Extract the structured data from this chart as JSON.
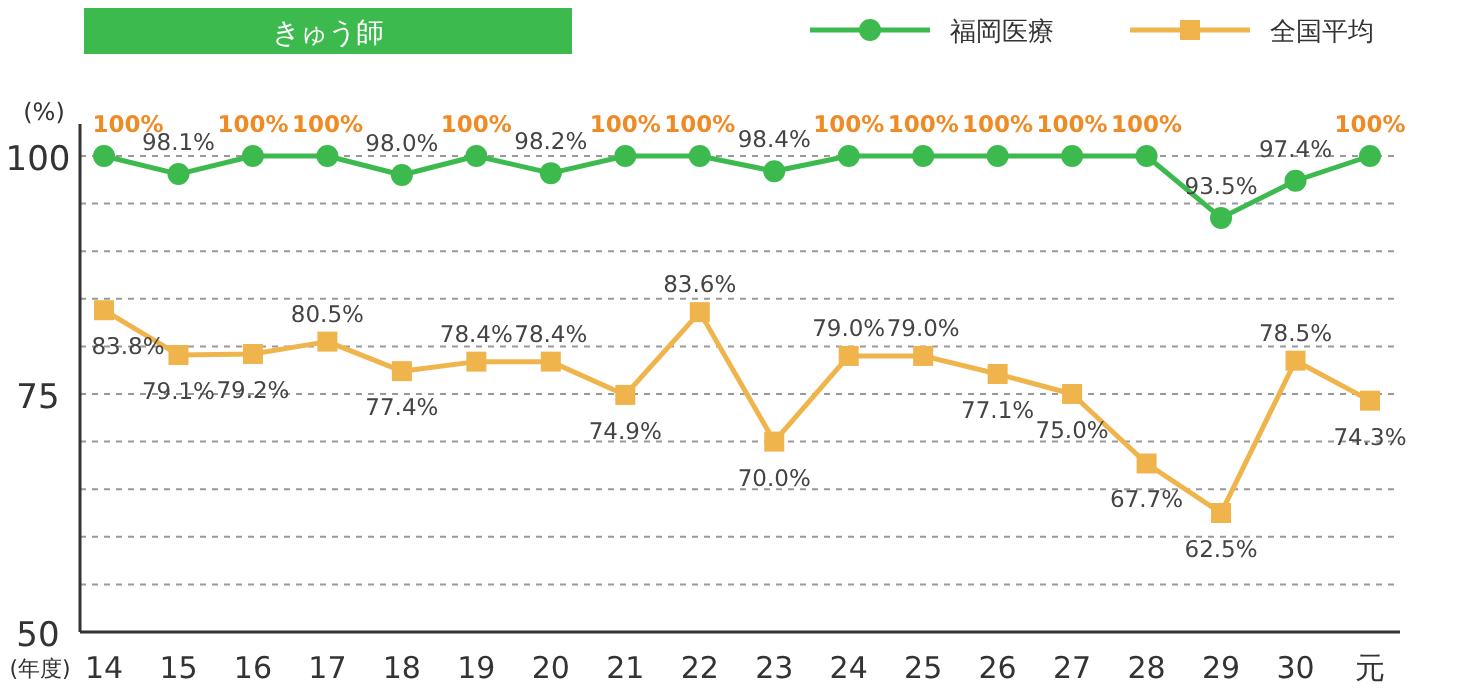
{
  "chart_data": {
    "type": "line",
    "title": "きゅう師",
    "xlabel": "(年度)",
    "ylabel": "(%)",
    "categories": [
      "14",
      "15",
      "16",
      "17",
      "18",
      "19",
      "20",
      "21",
      "22",
      "23",
      "24",
      "25",
      "26",
      "27",
      "28",
      "29",
      "30",
      "元"
    ],
    "series": [
      {
        "name": "福岡医療",
        "color": "#3dba4e",
        "marker": "circle",
        "values": [
          100,
          98.1,
          100,
          100,
          98.0,
          100,
          98.2,
          100,
          100,
          98.4,
          100,
          100,
          100,
          100,
          100,
          93.5,
          97.4,
          100
        ],
        "value_labels": [
          "100%",
          "98.1%",
          "100%",
          "100%",
          "98.0%",
          "100%",
          "98.2%",
          "100%",
          "100%",
          "98.4%",
          "100%",
          "100%",
          "100%",
          "100%",
          "100%",
          "93.5%",
          "97.4%",
          "100%"
        ]
      },
      {
        "name": "全国平均",
        "color": "#f0b44c",
        "marker": "square",
        "values": [
          83.8,
          79.1,
          79.2,
          80.5,
          77.4,
          78.4,
          78.4,
          74.9,
          83.6,
          70.0,
          79.0,
          79.0,
          77.1,
          75.0,
          67.7,
          62.5,
          78.5,
          74.3
        ],
        "value_labels": [
          "83.8%",
          "79.1%",
          "79.2%",
          "80.5%",
          "77.4%",
          "78.4%",
          "78.4%",
          "74.9%",
          "83.6%",
          "70.0%",
          "79.0%",
          "79.0%",
          "77.1%",
          "75.0%",
          "67.7%",
          "62.5%",
          "78.5%",
          "74.3%"
        ]
      }
    ],
    "ylim": [
      50,
      100
    ],
    "yticks": [
      50,
      {
        "value": 55,
        "label": null
      },
      {
        "value": 60,
        "label": null
      },
      {
        "value": 65,
        "label": null
      },
      {
        "value": 70,
        "label": null
      },
      75,
      {
        "value": 80,
        "label": null
      },
      {
        "value": 85,
        "label": null
      },
      {
        "value": 90,
        "label": null
      },
      {
        "value": 95,
        "label": null
      },
      100
    ],
    "grid": "y",
    "legend": "top right"
  }
}
